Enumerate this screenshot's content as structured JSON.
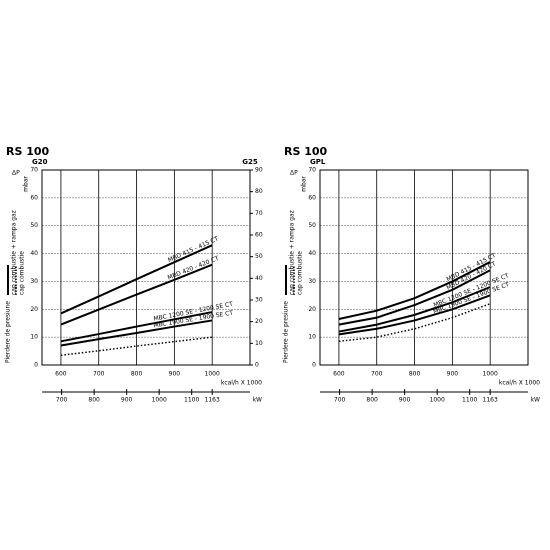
{
  "chart_data": [
    {
      "type": "line",
      "title": "RS 100",
      "gas": "G20",
      "y2gas": "G25",
      "ylabel_top": "ΔP",
      "yunit": "mbar",
      "ylabel": "Pierdere de presiune",
      "legend": [
        {
          "label": "cap combustie + rampa gaz",
          "style": "solid"
        },
        {
          "label": "cap combustie",
          "style": "dotted"
        }
      ],
      "xlabel": "kcal/h X 1000",
      "x2label": "kW",
      "x": [
        600,
        700,
        800,
        900,
        1000
      ],
      "xlim": [
        550,
        1100
      ],
      "xticks": [
        600,
        700,
        800,
        900,
        1000
      ],
      "ylim": [
        0,
        70
      ],
      "yticks": [
        0,
        10,
        20,
        30,
        40,
        50,
        60,
        70
      ],
      "y2lim": [
        0,
        90
      ],
      "y2ticks": [
        0,
        10,
        20,
        30,
        40,
        50,
        60,
        70,
        80,
        90
      ],
      "x2lim": [
        639.65,
        1279.3
      ],
      "x2ticks": [
        700,
        800,
        900,
        1000,
        1100,
        1163
      ],
      "grid": true,
      "series": [
        {
          "name": "MBD 415 - 415 CT",
          "color": "#000000",
          "style": "solid",
          "values": [
            18.5,
            24.6,
            30.8,
            36.9,
            43
          ]
        },
        {
          "name": "MBD 420 - 420 CT",
          "color": "#000000",
          "style": "solid",
          "values": [
            14.5,
            19.9,
            25.3,
            30.6,
            36
          ]
        },
        {
          "name": "MBC 1200 SE - 1200 SE CT",
          "color": "#000000",
          "style": "solid",
          "values": [
            8.5,
            11.1,
            13.8,
            16.4,
            19
          ]
        },
        {
          "name": "MBC 1900 SE - 1900 SE CT",
          "color": "#000000",
          "style": "solid",
          "values": [
            7,
            9.3,
            11.5,
            13.8,
            16
          ]
        },
        {
          "color": "#000000",
          "style": "dotted",
          "values": [
            3.5,
            5.1,
            6.8,
            8.4,
            10
          ]
        }
      ]
    },
    {
      "type": "line",
      "title": "RS 100",
      "gas": "GPL",
      "ylabel_top": "ΔP",
      "yunit": "mbar",
      "ylabel": "Pierdere de presiune",
      "legend": [
        {
          "label": "cap combustie + rampa gaz",
          "style": "solid"
        },
        {
          "label": "cap combustie",
          "style": "dotted"
        }
      ],
      "xlabel": "kcal/h X 1000",
      "x2label": "kW",
      "x": [
        600,
        700,
        800,
        900,
        1000
      ],
      "xlim": [
        550,
        1100
      ],
      "xticks": [
        600,
        700,
        800,
        900,
        1000
      ],
      "ylim": [
        0,
        70
      ],
      "yticks": [
        0,
        10,
        20,
        30,
        40,
        50,
        60,
        70
      ],
      "x2lim": [
        639.65,
        1279.3
      ],
      "x2ticks": [
        700,
        800,
        900,
        1000,
        1100,
        1163
      ],
      "grid": true,
      "series": [
        {
          "name": "MBD 415 - 415 CT",
          "color": "#000000",
          "style": "solid",
          "values": [
            16.5,
            19.5,
            24,
            30,
            37
          ]
        },
        {
          "name": "MBD 420 - 420 CT",
          "color": "#000000",
          "style": "solid",
          "values": [
            14.5,
            17,
            21.5,
            27,
            34
          ]
        },
        {
          "name": "MBC 1200 SE - 1200 SE CT",
          "color": "#000000",
          "style": "solid",
          "values": [
            12,
            14.5,
            18,
            22.5,
            28
          ]
        },
        {
          "name": "MBC 1900 SE - 1900 SE CT",
          "color": "#000000",
          "style": "solid",
          "values": [
            11,
            13,
            16,
            20,
            25
          ]
        },
        {
          "color": "#000000",
          "style": "dotted",
          "values": [
            8.5,
            10,
            13,
            17,
            22
          ]
        }
      ]
    }
  ]
}
